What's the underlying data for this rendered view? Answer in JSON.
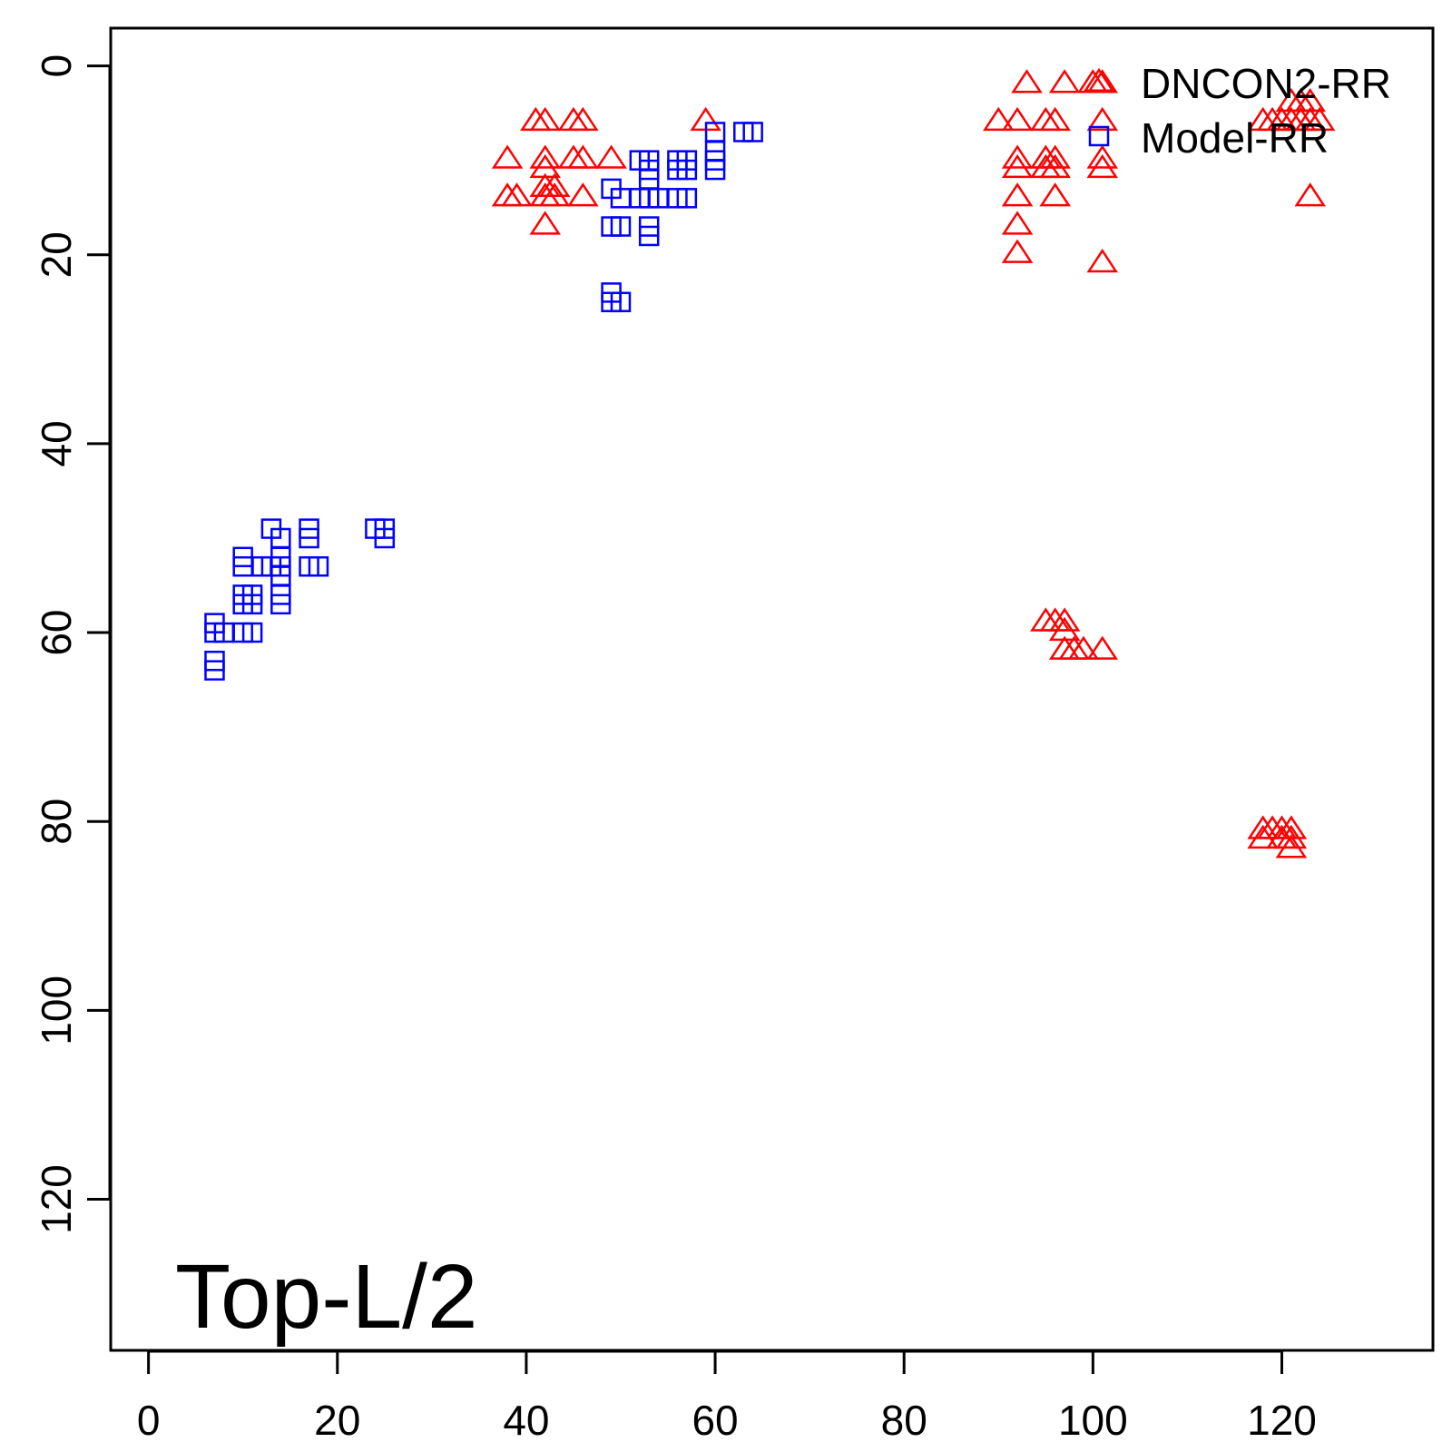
{
  "chart_data": {
    "type": "scatter",
    "title": "",
    "xlabel": "",
    "ylabel": "",
    "xlim": [
      -4,
      136
    ],
    "ylim": [
      136,
      -4
    ],
    "y_reversed": true,
    "x_ticks": [
      0,
      20,
      40,
      60,
      80,
      100,
      120
    ],
    "y_ticks": [
      0,
      20,
      40,
      60,
      80,
      100,
      120
    ],
    "x_tick_labels": [
      "0",
      "20",
      "40",
      "60",
      "80",
      "100",
      "120"
    ],
    "y_tick_labels": [
      "0",
      "20",
      "40",
      "60",
      "80",
      "100",
      "120"
    ],
    "grid": false,
    "legend_position": "top-right",
    "annotation": "Top-L/2",
    "series": [
      {
        "name": "DNCON2-RR",
        "marker": "triangle",
        "color": "#ff0000",
        "points": [
          [
            41,
            6
          ],
          [
            42,
            6
          ],
          [
            45,
            6
          ],
          [
            46,
            6
          ],
          [
            59,
            6
          ],
          [
            38,
            10
          ],
          [
            42,
            10
          ],
          [
            45,
            10
          ],
          [
            46,
            10
          ],
          [
            49,
            10
          ],
          [
            42,
            11
          ],
          [
            42,
            13
          ],
          [
            43,
            13
          ],
          [
            38,
            14
          ],
          [
            39,
            14
          ],
          [
            42,
            14
          ],
          [
            43,
            14
          ],
          [
            46,
            14
          ],
          [
            42,
            17
          ],
          [
            93,
            2
          ],
          [
            97,
            2
          ],
          [
            100,
            2
          ],
          [
            101,
            2
          ],
          [
            90,
            6
          ],
          [
            92,
            6
          ],
          [
            95,
            6
          ],
          [
            96,
            6
          ],
          [
            101,
            6
          ],
          [
            92,
            10
          ],
          [
            95,
            10
          ],
          [
            96,
            10
          ],
          [
            101,
            10
          ],
          [
            92,
            11
          ],
          [
            95,
            11
          ],
          [
            96,
            11
          ],
          [
            101,
            11
          ],
          [
            92,
            14
          ],
          [
            96,
            14
          ],
          [
            92,
            17
          ],
          [
            92,
            20
          ],
          [
            101,
            21
          ],
          [
            121,
            4
          ],
          [
            122,
            4
          ],
          [
            123,
            4
          ],
          [
            118,
            6
          ],
          [
            119,
            6
          ],
          [
            120,
            6
          ],
          [
            121,
            6
          ],
          [
            122,
            6
          ],
          [
            123,
            6
          ],
          [
            124,
            6
          ],
          [
            123,
            14
          ],
          [
            95,
            59
          ],
          [
            96,
            59
          ],
          [
            97,
            59
          ],
          [
            97,
            60
          ],
          [
            97,
            62
          ],
          [
            98,
            62
          ],
          [
            99,
            62
          ],
          [
            101,
            62
          ],
          [
            118,
            81
          ],
          [
            119,
            81
          ],
          [
            120,
            81
          ],
          [
            121,
            81
          ],
          [
            118,
            82
          ],
          [
            120,
            82
          ],
          [
            121,
            82
          ],
          [
            121,
            83
          ]
        ]
      },
      {
        "name": "Model-RR",
        "marker": "square",
        "color": "#0000ff",
        "points": [
          [
            60,
            7
          ],
          [
            63,
            7
          ],
          [
            64,
            7
          ],
          [
            60,
            9
          ],
          [
            52,
            10
          ],
          [
            53,
            10
          ],
          [
            56,
            10
          ],
          [
            57,
            10
          ],
          [
            60,
            10
          ],
          [
            53,
            11
          ],
          [
            56,
            11
          ],
          [
            57,
            11
          ],
          [
            60,
            11
          ],
          [
            53,
            12
          ],
          [
            49,
            13
          ],
          [
            50,
            14
          ],
          [
            52,
            14
          ],
          [
            53,
            14
          ],
          [
            54,
            14
          ],
          [
            56,
            14
          ],
          [
            57,
            14
          ],
          [
            49,
            17
          ],
          [
            50,
            17
          ],
          [
            53,
            17
          ],
          [
            53,
            18
          ],
          [
            49,
            24
          ],
          [
            49,
            25
          ],
          [
            50,
            25
          ],
          [
            13,
            49
          ],
          [
            17,
            49
          ],
          [
            24,
            49
          ],
          [
            25,
            49
          ],
          [
            14,
            50
          ],
          [
            17,
            50
          ],
          [
            25,
            50
          ],
          [
            10,
            52
          ],
          [
            14,
            52
          ],
          [
            10,
            53
          ],
          [
            12,
            53
          ],
          [
            13,
            53
          ],
          [
            14,
            53
          ],
          [
            17,
            53
          ],
          [
            18,
            53
          ],
          [
            14,
            54
          ],
          [
            10,
            56
          ],
          [
            11,
            56
          ],
          [
            14,
            56
          ],
          [
            10,
            57
          ],
          [
            11,
            57
          ],
          [
            14,
            57
          ],
          [
            7,
            59
          ],
          [
            7,
            60
          ],
          [
            8,
            60
          ],
          [
            10,
            60
          ],
          [
            11,
            60
          ],
          [
            7,
            63
          ],
          [
            7,
            64
          ]
        ]
      }
    ]
  }
}
